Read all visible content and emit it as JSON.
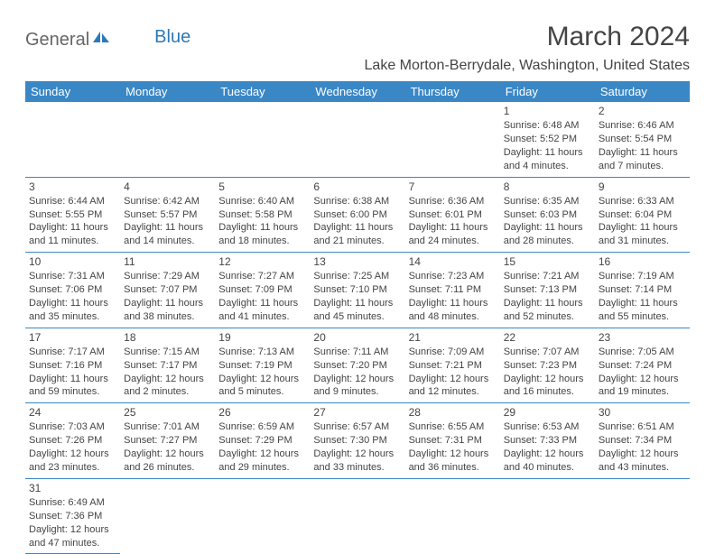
{
  "logo": {
    "text_general": "General",
    "text_blue": "Blue",
    "icon_color": "#2d79b6"
  },
  "header": {
    "month_title": "March 2024",
    "location": "Lake Morton-Berrydale, Washington, United States"
  },
  "colors": {
    "header_bg": "#3a87c5",
    "header_text": "#ffffff",
    "border": "#3a87c5",
    "text": "#444444"
  },
  "day_headers": [
    "Sunday",
    "Monday",
    "Tuesday",
    "Wednesday",
    "Thursday",
    "Friday",
    "Saturday"
  ],
  "weeks": [
    [
      null,
      null,
      null,
      null,
      null,
      {
        "num": "1",
        "sunrise": "Sunrise: 6:48 AM",
        "sunset": "Sunset: 5:52 PM",
        "daylight": "Daylight: 11 hours and 4 minutes."
      },
      {
        "num": "2",
        "sunrise": "Sunrise: 6:46 AM",
        "sunset": "Sunset: 5:54 PM",
        "daylight": "Daylight: 11 hours and 7 minutes."
      }
    ],
    [
      {
        "num": "3",
        "sunrise": "Sunrise: 6:44 AM",
        "sunset": "Sunset: 5:55 PM",
        "daylight": "Daylight: 11 hours and 11 minutes."
      },
      {
        "num": "4",
        "sunrise": "Sunrise: 6:42 AM",
        "sunset": "Sunset: 5:57 PM",
        "daylight": "Daylight: 11 hours and 14 minutes."
      },
      {
        "num": "5",
        "sunrise": "Sunrise: 6:40 AM",
        "sunset": "Sunset: 5:58 PM",
        "daylight": "Daylight: 11 hours and 18 minutes."
      },
      {
        "num": "6",
        "sunrise": "Sunrise: 6:38 AM",
        "sunset": "Sunset: 6:00 PM",
        "daylight": "Daylight: 11 hours and 21 minutes."
      },
      {
        "num": "7",
        "sunrise": "Sunrise: 6:36 AM",
        "sunset": "Sunset: 6:01 PM",
        "daylight": "Daylight: 11 hours and 24 minutes."
      },
      {
        "num": "8",
        "sunrise": "Sunrise: 6:35 AM",
        "sunset": "Sunset: 6:03 PM",
        "daylight": "Daylight: 11 hours and 28 minutes."
      },
      {
        "num": "9",
        "sunrise": "Sunrise: 6:33 AM",
        "sunset": "Sunset: 6:04 PM",
        "daylight": "Daylight: 11 hours and 31 minutes."
      }
    ],
    [
      {
        "num": "10",
        "sunrise": "Sunrise: 7:31 AM",
        "sunset": "Sunset: 7:06 PM",
        "daylight": "Daylight: 11 hours and 35 minutes."
      },
      {
        "num": "11",
        "sunrise": "Sunrise: 7:29 AM",
        "sunset": "Sunset: 7:07 PM",
        "daylight": "Daylight: 11 hours and 38 minutes."
      },
      {
        "num": "12",
        "sunrise": "Sunrise: 7:27 AM",
        "sunset": "Sunset: 7:09 PM",
        "daylight": "Daylight: 11 hours and 41 minutes."
      },
      {
        "num": "13",
        "sunrise": "Sunrise: 7:25 AM",
        "sunset": "Sunset: 7:10 PM",
        "daylight": "Daylight: 11 hours and 45 minutes."
      },
      {
        "num": "14",
        "sunrise": "Sunrise: 7:23 AM",
        "sunset": "Sunset: 7:11 PM",
        "daylight": "Daylight: 11 hours and 48 minutes."
      },
      {
        "num": "15",
        "sunrise": "Sunrise: 7:21 AM",
        "sunset": "Sunset: 7:13 PM",
        "daylight": "Daylight: 11 hours and 52 minutes."
      },
      {
        "num": "16",
        "sunrise": "Sunrise: 7:19 AM",
        "sunset": "Sunset: 7:14 PM",
        "daylight": "Daylight: 11 hours and 55 minutes."
      }
    ],
    [
      {
        "num": "17",
        "sunrise": "Sunrise: 7:17 AM",
        "sunset": "Sunset: 7:16 PM",
        "daylight": "Daylight: 11 hours and 59 minutes."
      },
      {
        "num": "18",
        "sunrise": "Sunrise: 7:15 AM",
        "sunset": "Sunset: 7:17 PM",
        "daylight": "Daylight: 12 hours and 2 minutes."
      },
      {
        "num": "19",
        "sunrise": "Sunrise: 7:13 AM",
        "sunset": "Sunset: 7:19 PM",
        "daylight": "Daylight: 12 hours and 5 minutes."
      },
      {
        "num": "20",
        "sunrise": "Sunrise: 7:11 AM",
        "sunset": "Sunset: 7:20 PM",
        "daylight": "Daylight: 12 hours and 9 minutes."
      },
      {
        "num": "21",
        "sunrise": "Sunrise: 7:09 AM",
        "sunset": "Sunset: 7:21 PM",
        "daylight": "Daylight: 12 hours and 12 minutes."
      },
      {
        "num": "22",
        "sunrise": "Sunrise: 7:07 AM",
        "sunset": "Sunset: 7:23 PM",
        "daylight": "Daylight: 12 hours and 16 minutes."
      },
      {
        "num": "23",
        "sunrise": "Sunrise: 7:05 AM",
        "sunset": "Sunset: 7:24 PM",
        "daylight": "Daylight: 12 hours and 19 minutes."
      }
    ],
    [
      {
        "num": "24",
        "sunrise": "Sunrise: 7:03 AM",
        "sunset": "Sunset: 7:26 PM",
        "daylight": "Daylight: 12 hours and 23 minutes."
      },
      {
        "num": "25",
        "sunrise": "Sunrise: 7:01 AM",
        "sunset": "Sunset: 7:27 PM",
        "daylight": "Daylight: 12 hours and 26 minutes."
      },
      {
        "num": "26",
        "sunrise": "Sunrise: 6:59 AM",
        "sunset": "Sunset: 7:29 PM",
        "daylight": "Daylight: 12 hours and 29 minutes."
      },
      {
        "num": "27",
        "sunrise": "Sunrise: 6:57 AM",
        "sunset": "Sunset: 7:30 PM",
        "daylight": "Daylight: 12 hours and 33 minutes."
      },
      {
        "num": "28",
        "sunrise": "Sunrise: 6:55 AM",
        "sunset": "Sunset: 7:31 PM",
        "daylight": "Daylight: 12 hours and 36 minutes."
      },
      {
        "num": "29",
        "sunrise": "Sunrise: 6:53 AM",
        "sunset": "Sunset: 7:33 PM",
        "daylight": "Daylight: 12 hours and 40 minutes."
      },
      {
        "num": "30",
        "sunrise": "Sunrise: 6:51 AM",
        "sunset": "Sunset: 7:34 PM",
        "daylight": "Daylight: 12 hours and 43 minutes."
      }
    ],
    [
      {
        "num": "31",
        "sunrise": "Sunrise: 6:49 AM",
        "sunset": "Sunset: 7:36 PM",
        "daylight": "Daylight: 12 hours and 47 minutes."
      },
      null,
      null,
      null,
      null,
      null,
      null
    ]
  ]
}
